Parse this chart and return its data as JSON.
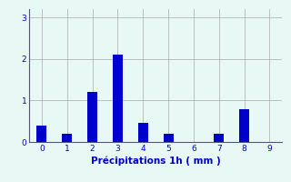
{
  "categories": [
    0,
    1,
    2,
    3,
    4,
    5,
    6,
    7,
    8,
    9
  ],
  "values": [
    0.4,
    0.2,
    1.2,
    2.1,
    0.45,
    0.2,
    0.0,
    0.2,
    0.8,
    0.0
  ],
  "bar_color": "#0000cc",
  "background_color": "#e8f8f5",
  "grid_color": "#aaaaaa",
  "xlabel": "Précipitations 1h ( mm )",
  "xlabel_color": "#0000cc",
  "tick_color": "#0000cc",
  "axis_color": "#555577",
  "ylim": [
    0,
    3.2
  ],
  "xlim": [
    -0.5,
    9.5
  ],
  "yticks": [
    0,
    1,
    2,
    3
  ],
  "xticks": [
    0,
    1,
    2,
    3,
    4,
    5,
    6,
    7,
    8,
    9
  ],
  "bar_width": 0.4
}
